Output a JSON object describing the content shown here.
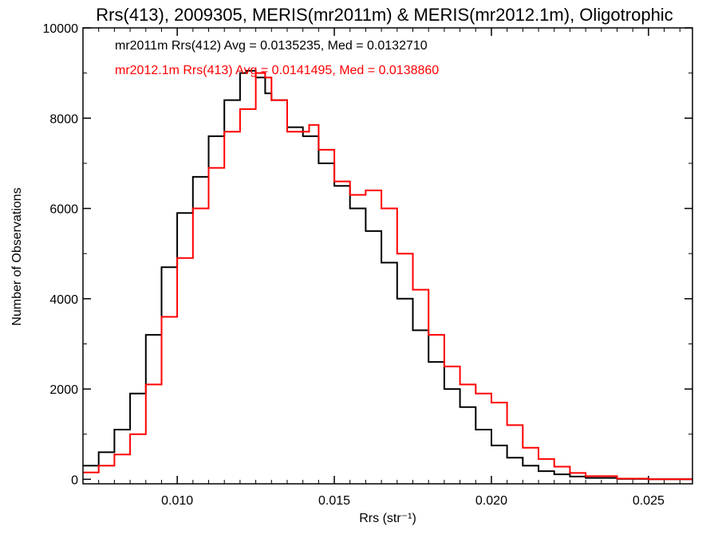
{
  "chart_data": {
    "type": "line",
    "title": "Rrs(413), 2009305, MERIS(mr2011m) & MERIS(mr2012.1m), Oligotrophic",
    "xlabel": "Rrs (str⁻¹)",
    "ylabel": "Number of Observations",
    "xlim": [
      0.007,
      0.0264
    ],
    "ylim": [
      -100,
      10000
    ],
    "xticks": [
      0.01,
      0.015,
      0.02,
      0.025
    ],
    "xtick_labels": [
      "0.010",
      "0.015",
      "0.020",
      "0.025"
    ],
    "yticks": [
      0,
      2000,
      4000,
      6000,
      8000,
      10000
    ],
    "ytick_labels": [
      "0",
      "2000",
      "4000",
      "6000",
      "8000",
      "10000"
    ],
    "grid": false,
    "legend_position": "top-left",
    "annotations": [
      "mr2011m Rrs(412) Avg = 0.0135235, Med = 0.0132710",
      "mr2012.1m Rrs(413) Avg = 0.0141495, Med = 0.0138860"
    ],
    "series": [
      {
        "color": "#000000",
        "step": "hv",
        "x": [
          0.007,
          0.0075,
          0.008,
          0.0085,
          0.009,
          0.0095,
          0.01,
          0.0105,
          0.011,
          0.0115,
          0.012,
          0.0122,
          0.0125,
          0.0128,
          0.013,
          0.0135,
          0.014,
          0.0145,
          0.015,
          0.0155,
          0.016,
          0.0165,
          0.017,
          0.0175,
          0.018,
          0.0185,
          0.019,
          0.0195,
          0.02,
          0.0205,
          0.021,
          0.0215,
          0.022,
          0.0225,
          0.023,
          0.024,
          0.025,
          0.0264
        ],
        "values": [
          300,
          600,
          1100,
          1900,
          3200,
          4700,
          5900,
          6700,
          7600,
          8400,
          9000,
          9050,
          8900,
          8550,
          8400,
          7800,
          7600,
          7000,
          6500,
          6000,
          5500,
          4800,
          4000,
          3300,
          2600,
          2000,
          1600,
          1100,
          750,
          480,
          300,
          180,
          110,
          60,
          30,
          8,
          2,
          0
        ]
      },
      {
        "color": "#ff0000",
        "step": "hv",
        "x": [
          0.007,
          0.0075,
          0.008,
          0.0085,
          0.009,
          0.0095,
          0.01,
          0.0105,
          0.011,
          0.0115,
          0.012,
          0.0125,
          0.0128,
          0.013,
          0.0135,
          0.014,
          0.0142,
          0.0145,
          0.015,
          0.0155,
          0.016,
          0.0165,
          0.017,
          0.0175,
          0.018,
          0.0185,
          0.019,
          0.0195,
          0.02,
          0.0205,
          0.021,
          0.0215,
          0.022,
          0.0225,
          0.023,
          0.024,
          0.025,
          0.0264
        ],
        "values": [
          150,
          300,
          550,
          1000,
          2100,
          3600,
          4900,
          6000,
          6900,
          7700,
          8200,
          9000,
          8900,
          8400,
          7700,
          7700,
          7850,
          7300,
          6600,
          6300,
          6400,
          6000,
          5000,
          4200,
          3200,
          2500,
          2100,
          1900,
          1700,
          1200,
          700,
          450,
          280,
          140,
          70,
          15,
          3,
          0
        ]
      }
    ]
  }
}
